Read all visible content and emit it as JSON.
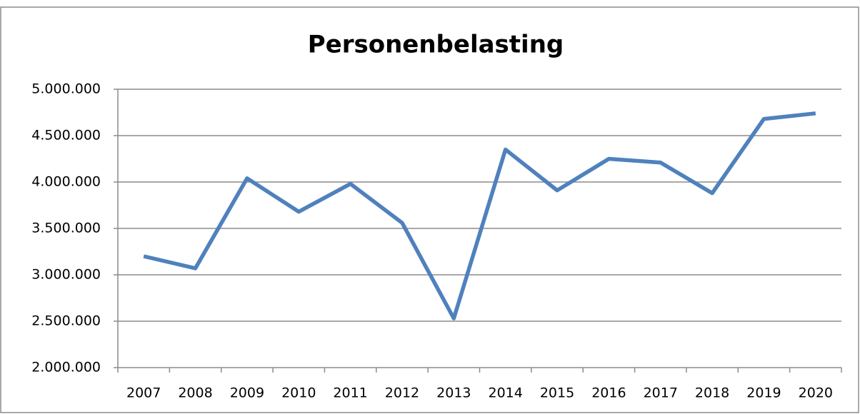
{
  "chart_data": {
    "type": "line",
    "title": "Personenbelasting",
    "categories": [
      "2007",
      "2008",
      "2009",
      "2010",
      "2011",
      "2012",
      "2013",
      "2014",
      "2015",
      "2016",
      "2017",
      "2018",
      "2019",
      "2020"
    ],
    "series": [
      {
        "name": "Personenbelasting",
        "color": "#4f81bd",
        "values": [
          3200000,
          3070000,
          4040000,
          3680000,
          3980000,
          3560000,
          2530000,
          4350000,
          3910000,
          4250000,
          4210000,
          3880000,
          4680000,
          4740000
        ]
      }
    ],
    "ylim": [
      2000000,
      5000000
    ],
    "yticks": [
      {
        "value": 2000000,
        "label": "2.000.000"
      },
      {
        "value": 2500000,
        "label": "2.500.000"
      },
      {
        "value": 3000000,
        "label": "3.000.000"
      },
      {
        "value": 3500000,
        "label": "3.500.000"
      },
      {
        "value": 4000000,
        "label": "4.000.000"
      },
      {
        "value": 4500000,
        "label": "4.500.000"
      },
      {
        "value": 5000000,
        "label": "5.000.000"
      }
    ],
    "grid": true
  }
}
